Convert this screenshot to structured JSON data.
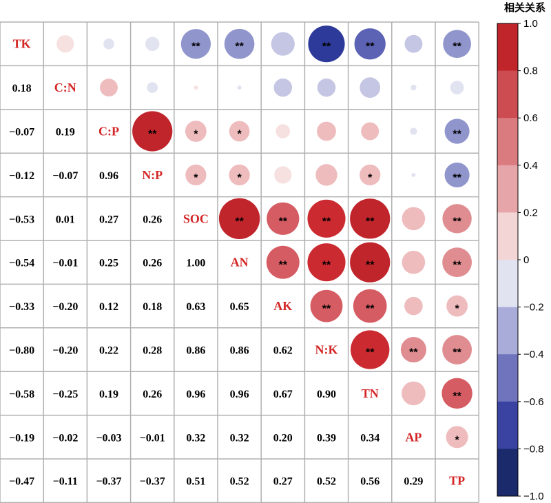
{
  "chart_data": {
    "type": "heatmap",
    "variables": [
      "TK",
      "C:N",
      "C:P",
      "N:P",
      "SOC",
      "AN",
      "AK",
      "N:K",
      "TN",
      "AP",
      "TP"
    ],
    "matrix": [
      [
        1.0,
        0.18,
        -0.07,
        -0.12,
        -0.53,
        -0.54,
        -0.33,
        -0.8,
        -0.58,
        -0.19,
        -0.47
      ],
      [
        0.18,
        1.0,
        0.19,
        -0.07,
        0.01,
        -0.01,
        -0.2,
        -0.2,
        -0.25,
        -0.02,
        -0.11
      ],
      [
        -0.07,
        0.19,
        1.0,
        0.96,
        0.27,
        0.25,
        0.12,
        0.22,
        0.19,
        -0.03,
        -0.37
      ],
      [
        -0.12,
        -0.07,
        0.96,
        1.0,
        0.26,
        0.26,
        0.18,
        0.28,
        0.26,
        -0.01,
        -0.37
      ],
      [
        -0.53,
        0.01,
        0.27,
        0.26,
        1.0,
        1.0,
        0.63,
        0.86,
        0.96,
        0.32,
        0.51
      ],
      [
        -0.54,
        -0.01,
        0.25,
        0.26,
        1.0,
        1.0,
        0.65,
        0.86,
        0.96,
        0.32,
        0.52
      ],
      [
        -0.33,
        -0.2,
        0.12,
        0.18,
        0.63,
        0.65,
        1.0,
        0.62,
        0.67,
        0.2,
        0.27
      ],
      [
        -0.8,
        -0.2,
        0.22,
        0.28,
        0.86,
        0.86,
        0.62,
        1.0,
        0.9,
        0.39,
        0.52
      ],
      [
        -0.58,
        -0.25,
        0.19,
        0.26,
        0.96,
        0.96,
        0.67,
        0.9,
        1.0,
        0.34,
        0.56
      ],
      [
        -0.19,
        -0.02,
        -0.03,
        -0.01,
        0.32,
        0.32,
        0.2,
        0.39,
        0.34,
        1.0,
        0.29
      ],
      [
        -0.47,
        -0.11,
        -0.37,
        -0.37,
        0.51,
        0.52,
        0.27,
        0.52,
        0.56,
        0.29,
        1.0
      ]
    ],
    "lower_triangle_labels": [
      [
        "0.18"
      ],
      [
        "−0.07",
        "0.19"
      ],
      [
        "−0.12",
        "−0.07",
        "0.96"
      ],
      [
        "−0.53",
        "0.01",
        "0.27",
        "0.26"
      ],
      [
        "−0.54",
        "−0.01",
        "0.25",
        "0.26",
        "1.00"
      ],
      [
        "−0.33",
        "−0.20",
        "0.12",
        "0.18",
        "0.63",
        "0.65"
      ],
      [
        "−0.80",
        "−0.20",
        "0.22",
        "0.28",
        "0.86",
        "0.86",
        "0.62"
      ],
      [
        "−0.58",
        "−0.25",
        "0.19",
        "0.26",
        "0.96",
        "0.96",
        "0.67",
        "0.90"
      ],
      [
        "−0.19",
        "−0.02",
        "−0.03",
        "−0.01",
        "0.32",
        "0.32",
        "0.20",
        "0.39",
        "0.34"
      ],
      [
        "−0.47",
        "−0.11",
        "−0.37",
        "−0.37",
        "0.51",
        "0.52",
        "0.27",
        "0.52",
        "0.56",
        "0.29"
      ]
    ],
    "significance": [
      [
        "",
        "",
        "",
        "**",
        "**",
        "",
        "**",
        "**",
        "",
        "**"
      ],
      [
        "",
        "",
        "",
        "",
        "",
        "",
        "",
        "",
        ""
      ],
      [
        "**",
        "*",
        "*",
        "",
        "",
        "",
        "",
        "**"
      ],
      [
        "*",
        "*",
        "",
        "",
        "*",
        "",
        "**"
      ],
      [
        "**",
        "**",
        "**",
        "**",
        "",
        "**"
      ],
      [
        "**",
        "**",
        "**",
        "",
        "**"
      ],
      [
        "**",
        "**",
        "",
        "*"
      ],
      [
        "**",
        "**",
        "**"
      ],
      [
        "",
        "**"
      ],
      [
        "*"
      ]
    ],
    "colorbar": {
      "title": "相关关系",
      "ticks": [
        "1.0",
        "0.8",
        "0.6",
        "0.4",
        "0.2",
        "0",
        "−0.2",
        "−0.4",
        "−0.6",
        "−0.8",
        "−1.0"
      ],
      "range": [
        -1.0,
        1.0
      ],
      "colors": [
        "#1b2a6b",
        "#2d3a9a",
        "#5c63b5",
        "#9095cc",
        "#c4c6e4",
        "#e2e3f1",
        "#f7e0e0",
        "#efbcbe",
        "#e08d91",
        "#d45c62",
        "#cb2a30",
        "#c0252b"
      ]
    },
    "label_color": "#d42626",
    "grid_color": "#b0b0b0"
  }
}
